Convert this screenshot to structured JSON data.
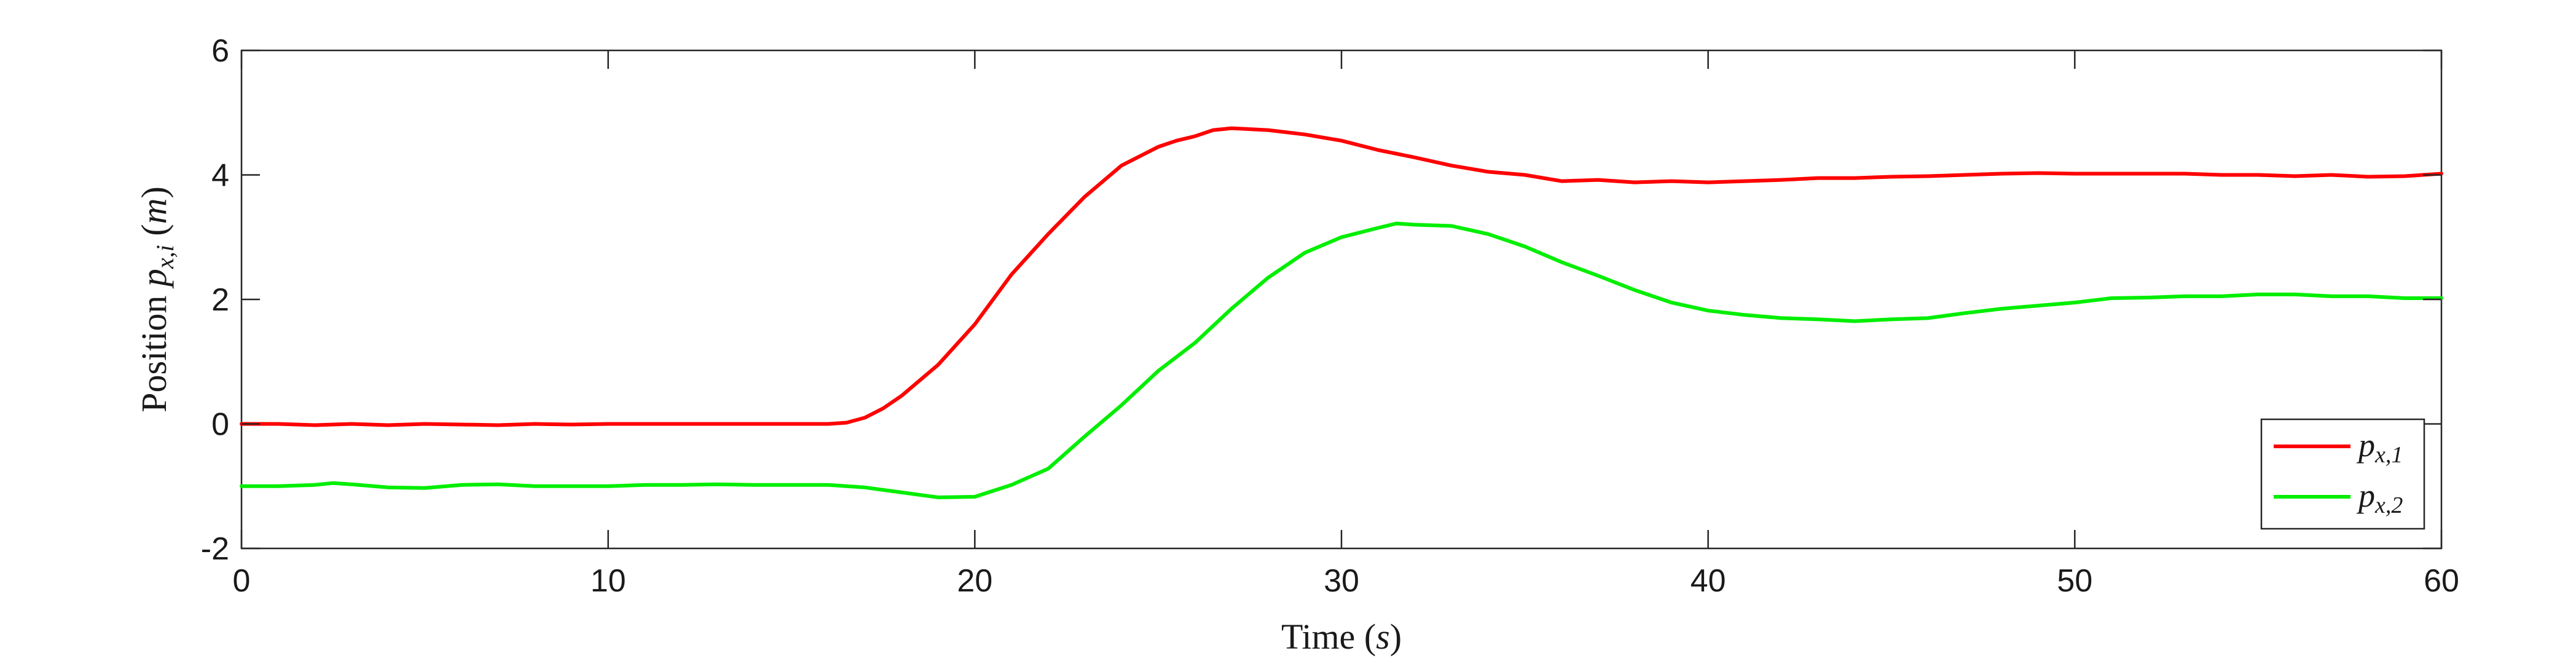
{
  "chart_data": {
    "type": "line",
    "title": "",
    "xlabel": "Time (s)",
    "ylabel": "Position p_{x,i} (m)",
    "xlabel_parts": {
      "word": "Time",
      "unit": "s"
    },
    "ylabel_parts": {
      "word": "Position",
      "symbol": "p",
      "subscript": "x,i",
      "unit": "m"
    },
    "xlim": [
      0,
      60
    ],
    "ylim": [
      -2,
      6
    ],
    "xticks": [
      0,
      10,
      20,
      30,
      40,
      50,
      60
    ],
    "yticks": [
      -2,
      0,
      2,
      4,
      6
    ],
    "grid": false,
    "legend_position": "bottom-right",
    "series": [
      {
        "name": "p_{x,1}",
        "legend_symbol": "p",
        "legend_subscript": "x,1",
        "color": "#ff0000",
        "x": [
          0,
          1,
          2,
          3,
          4,
          5,
          6,
          7,
          8,
          9,
          10,
          11,
          12,
          13,
          14,
          15,
          16,
          16.5,
          17,
          17.5,
          18,
          19,
          20,
          21,
          22,
          23,
          24,
          25,
          25.5,
          26,
          26.5,
          27,
          28,
          29,
          30,
          31,
          32,
          33,
          34,
          35,
          36,
          37,
          38,
          39,
          40,
          41,
          42,
          43,
          44,
          45,
          46,
          47,
          48,
          49,
          50,
          51,
          52,
          53,
          54,
          55,
          56,
          57,
          58,
          59,
          60
        ],
        "y": [
          0.0,
          0.0,
          -0.02,
          0.0,
          -0.02,
          0.0,
          -0.01,
          -0.02,
          0.0,
          -0.01,
          0.0,
          0.0,
          0.0,
          0.0,
          0.0,
          0.0,
          0.0,
          0.02,
          0.1,
          0.25,
          0.45,
          0.95,
          1.6,
          2.4,
          3.05,
          3.65,
          4.15,
          4.45,
          4.55,
          4.62,
          4.72,
          4.75,
          4.72,
          4.65,
          4.55,
          4.4,
          4.28,
          4.15,
          4.05,
          4.0,
          3.9,
          3.92,
          3.88,
          3.9,
          3.88,
          3.9,
          3.92,
          3.95,
          3.95,
          3.97,
          3.98,
          4.0,
          4.02,
          4.03,
          4.02,
          4.02,
          4.02,
          4.02,
          4.0,
          4.0,
          3.98,
          4.0,
          3.97,
          3.98,
          4.02
        ]
      },
      {
        "name": "p_{x,2}",
        "legend_symbol": "p",
        "legend_subscript": "x,2",
        "color": "#00ee00",
        "x": [
          0,
          1,
          2,
          2.5,
          3,
          4,
          5,
          6,
          7,
          8,
          9,
          10,
          11,
          12,
          13,
          14,
          15,
          16,
          17,
          18,
          19,
          20,
          21,
          22,
          23,
          24,
          25,
          26,
          27,
          28,
          29,
          30,
          31,
          31.5,
          32,
          33,
          34,
          35,
          36,
          37,
          38,
          39,
          40,
          41,
          42,
          43,
          44,
          45,
          46,
          47,
          48,
          49,
          50,
          51,
          52,
          53,
          54,
          55,
          56,
          57,
          58,
          59,
          60
        ],
        "y": [
          -1.0,
          -1.0,
          -0.98,
          -0.95,
          -0.97,
          -1.02,
          -1.03,
          -0.98,
          -0.97,
          -1.0,
          -1.0,
          -1.0,
          -0.98,
          -0.98,
          -0.97,
          -0.98,
          -0.98,
          -0.98,
          -1.02,
          -1.1,
          -1.18,
          -1.17,
          -0.98,
          -0.72,
          -0.2,
          0.3,
          0.85,
          1.3,
          1.85,
          2.35,
          2.75,
          3.0,
          3.15,
          3.22,
          3.2,
          3.18,
          3.05,
          2.85,
          2.6,
          2.38,
          2.15,
          1.95,
          1.82,
          1.75,
          1.7,
          1.68,
          1.65,
          1.68,
          1.7,
          1.78,
          1.85,
          1.9,
          1.95,
          2.02,
          2.03,
          2.05,
          2.05,
          2.08,
          2.08,
          2.05,
          2.05,
          2.02,
          2.02
        ]
      }
    ]
  }
}
